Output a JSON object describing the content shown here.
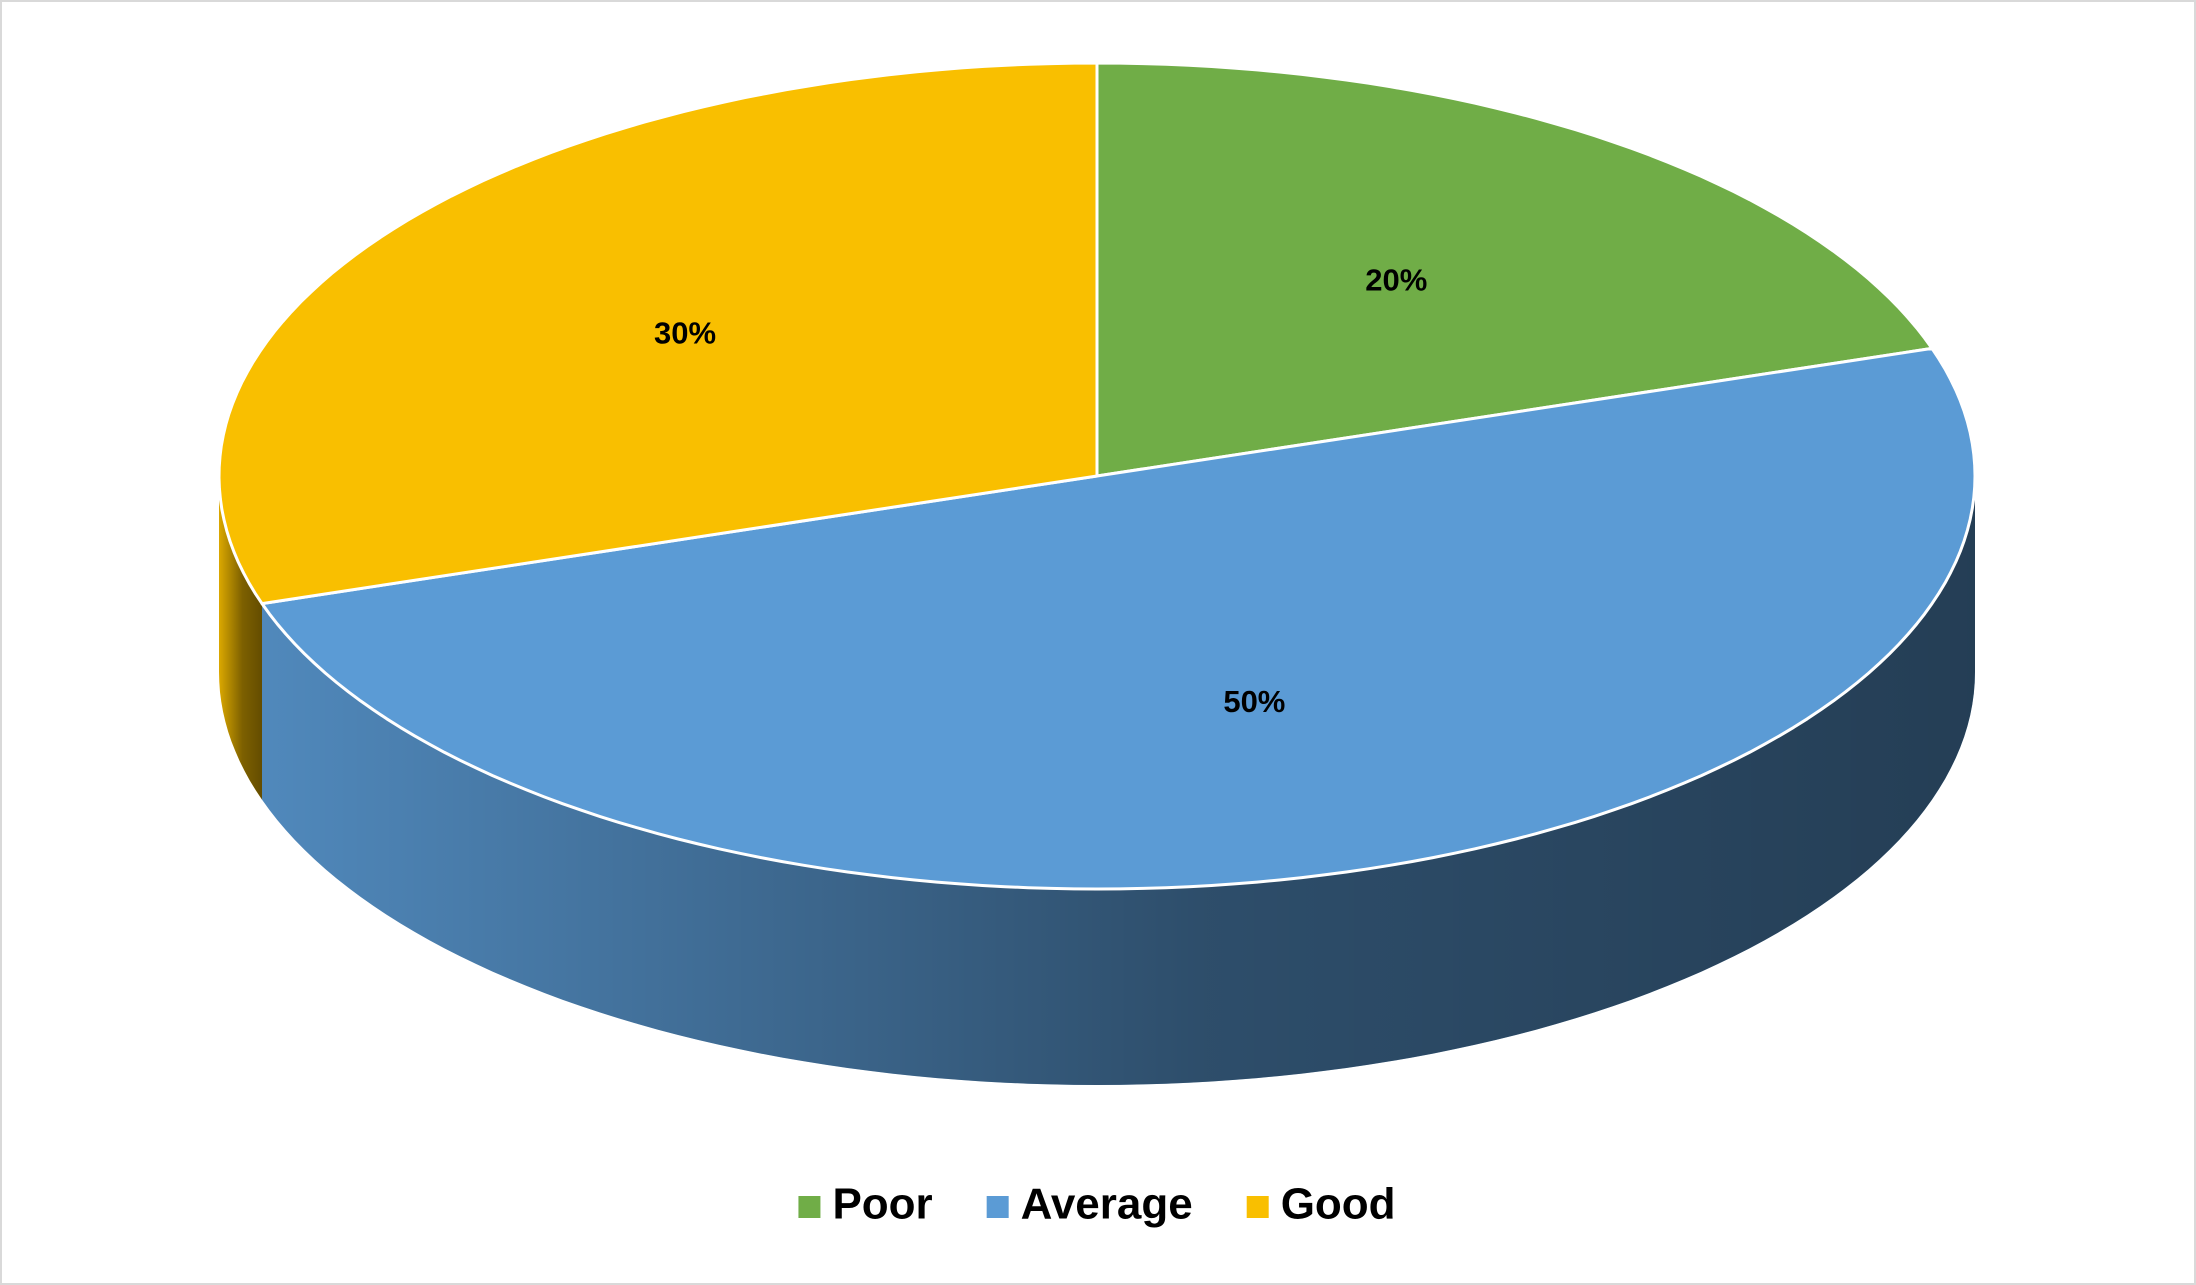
{
  "chart_data": {
    "type": "pie",
    "categories": [
      "Poor",
      "Average",
      "Good"
    ],
    "values": [
      20,
      50,
      30
    ],
    "value_labels": [
      "20%",
      "50%",
      "30%"
    ],
    "colors": [
      "#70ad47",
      "#5b9bd5",
      "#f9bf00"
    ],
    "legend": "bottom"
  }
}
